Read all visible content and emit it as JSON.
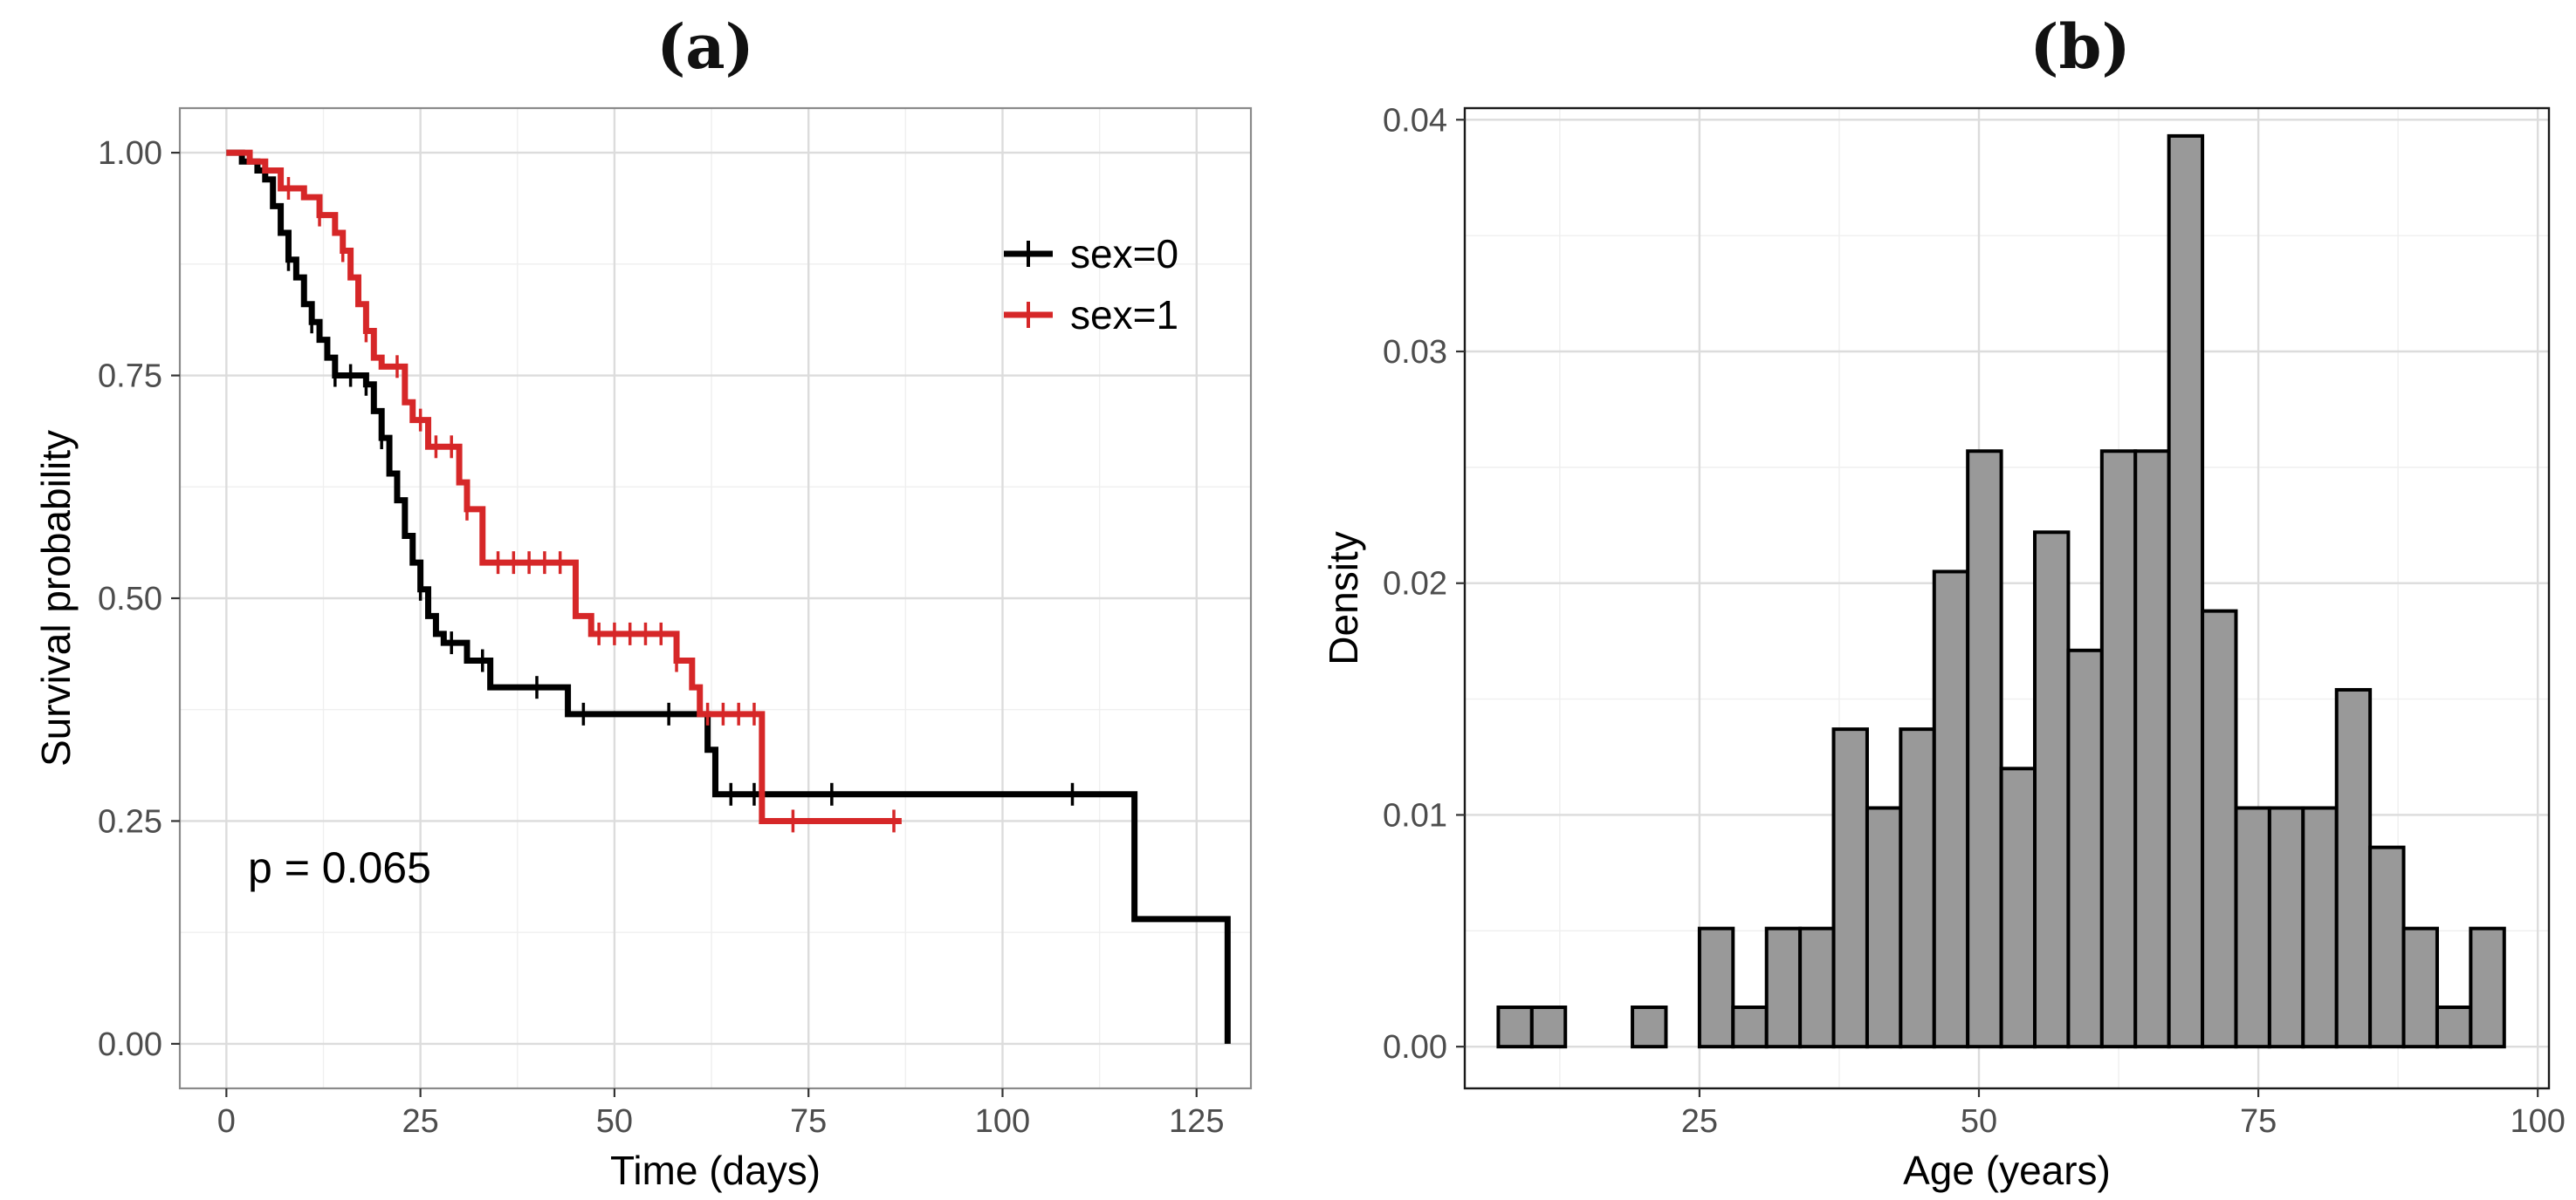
{
  "chart_data": [
    {
      "panel_label": "(a)",
      "type": "line",
      "subtype": "kaplan-meier",
      "xlabel": "Time (days)",
      "ylabel": "Survival probability",
      "xlim": [
        -6,
        132
      ],
      "ylim": [
        -0.05,
        1.05
      ],
      "xticks": [
        0,
        25,
        50,
        75,
        100,
        125
      ],
      "yticks": [
        0,
        0.25,
        0.5,
        0.75,
        1
      ],
      "ytick_labels": [
        "0.00",
        "0.25",
        "0.50",
        "0.75",
        "1.00"
      ],
      "grid": true,
      "legend_position": "top-right",
      "annotation": "p = 0.065",
      "series": [
        {
          "name": "sex=0",
          "color": "#000000",
          "steps": [
            [
              0,
              1.0
            ],
            [
              2,
              0.99
            ],
            [
              4,
              0.98
            ],
            [
              5,
              0.97
            ],
            [
              6,
              0.94
            ],
            [
              7,
              0.91
            ],
            [
              8,
              0.88
            ],
            [
              9,
              0.86
            ],
            [
              10,
              0.83
            ],
            [
              11,
              0.81
            ],
            [
              12,
              0.79
            ],
            [
              13,
              0.77
            ],
            [
              14,
              0.75
            ],
            [
              18,
              0.74
            ],
            [
              19,
              0.71
            ],
            [
              20,
              0.68
            ],
            [
              21,
              0.64
            ],
            [
              22,
              0.61
            ],
            [
              23,
              0.57
            ],
            [
              24,
              0.54
            ],
            [
              25,
              0.51
            ],
            [
              26,
              0.48
            ],
            [
              27,
              0.46
            ],
            [
              28,
              0.45
            ],
            [
              31,
              0.43
            ],
            [
              34,
              0.4
            ],
            [
              44,
              0.37
            ],
            [
              62,
              0.33
            ],
            [
              63,
              0.28
            ],
            [
              117,
              0.14
            ],
            [
              129,
              0.0
            ]
          ],
          "end": 129,
          "censor_times": [
            8,
            11,
            14,
            16,
            18,
            20,
            25,
            29,
            33,
            40,
            46,
            57,
            65,
            68,
            78,
            109
          ]
        },
        {
          "name": "sex=1",
          "color": "#d62728",
          "steps": [
            [
              0,
              1.0
            ],
            [
              3,
              0.99
            ],
            [
              5,
              0.98
            ],
            [
              7,
              0.96
            ],
            [
              10,
              0.95
            ],
            [
              12,
              0.93
            ],
            [
              14,
              0.91
            ],
            [
              15,
              0.89
            ],
            [
              16,
              0.86
            ],
            [
              17,
              0.83
            ],
            [
              18,
              0.8
            ],
            [
              19,
              0.77
            ],
            [
              20,
              0.76
            ],
            [
              23,
              0.72
            ],
            [
              24,
              0.7
            ],
            [
              26,
              0.67
            ],
            [
              30,
              0.63
            ],
            [
              31,
              0.6
            ],
            [
              33,
              0.54
            ],
            [
              45,
              0.48
            ],
            [
              47,
              0.46
            ],
            [
              58,
              0.43
            ],
            [
              60,
              0.4
            ],
            [
              61,
              0.37
            ],
            [
              69,
              0.25
            ]
          ],
          "end": 87,
          "censor_times": [
            8,
            12,
            15,
            18,
            22,
            25,
            27,
            29,
            31,
            35,
            37,
            39,
            41,
            43,
            48,
            50,
            52,
            54,
            56,
            58,
            62,
            64,
            66,
            68,
            73,
            86
          ]
        }
      ]
    },
    {
      "panel_label": "(b)",
      "type": "bar",
      "subtype": "histogram",
      "xlabel": "Age (years)",
      "ylabel": "Density",
      "xlim": [
        4,
        101
      ],
      "ylim": [
        -0.0018,
        0.0405
      ],
      "xticks": [
        25,
        50,
        75,
        100
      ],
      "yticks": [
        0,
        0.01,
        0.02,
        0.03,
        0.04
      ],
      "ytick_labels": [
        "0.00",
        "0.01",
        "0.02",
        "0.03",
        "0.04"
      ],
      "grid": true,
      "bar_color": "#999999",
      "bin_start": 7,
      "bin_width": 3,
      "values": [
        0.0017,
        0.0017,
        0.0,
        0.0,
        0.0017,
        0.0,
        0.0051,
        0.0017,
        0.0051,
        0.0051,
        0.0137,
        0.0103,
        0.0137,
        0.0205,
        0.0257,
        0.012,
        0.0222,
        0.0171,
        0.0257,
        0.0257,
        0.0393,
        0.0188,
        0.0103,
        0.0103,
        0.0103,
        0.0154,
        0.0086,
        0.0051,
        0.0017,
        0.0051
      ]
    }
  ]
}
